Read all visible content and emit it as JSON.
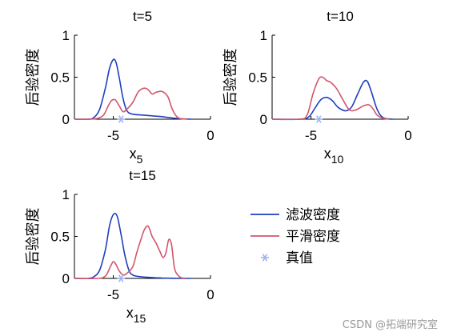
{
  "colors": {
    "filter": "#1f3fbf",
    "smooth": "#d2566b",
    "truth": "#9fb4f2",
    "axis": "#000000"
  },
  "legend": {
    "items": [
      {
        "label": "滤波密度",
        "color": "#1f3fbf",
        "marker": "line"
      },
      {
        "label": "平滑密度",
        "color": "#d2566b",
        "marker": "line"
      },
      {
        "label": "真值",
        "color": "#9fb4f2",
        "marker": "asterisk"
      }
    ]
  },
  "watermark": "CSDN @拓端研究室",
  "chart_data": [
    {
      "type": "line",
      "title": "t=5",
      "xlabel": "x",
      "xlabel_sub": "5",
      "ylabel": "后验密度",
      "xlim": [
        -7,
        0
      ],
      "ylim": [
        0,
        1
      ],
      "xticks": [
        -5,
        0
      ],
      "yticks": [
        0,
        0.5,
        1
      ],
      "series": [
        {
          "name": "滤波密度",
          "x": [
            -7,
            -6.3,
            -6,
            -5.7,
            -5.4,
            -5.2,
            -5.0,
            -4.85,
            -4.7,
            -4.5,
            -4.3,
            -4.0,
            -3.5,
            -3.0,
            -2.5,
            -2.0,
            -1.5,
            -1.0
          ],
          "y": [
            0,
            0,
            0.02,
            0.12,
            0.38,
            0.6,
            0.71,
            0.67,
            0.5,
            0.25,
            0.1,
            0.06,
            0.05,
            0.04,
            0.03,
            0.015,
            0.005,
            0
          ]
        },
        {
          "name": "平滑密度",
          "x": [
            -7,
            -6.2,
            -5.8,
            -5.5,
            -5.3,
            -5.1,
            -4.9,
            -4.7,
            -4.5,
            -4.3,
            -4.0,
            -3.7,
            -3.4,
            -3.2,
            -3.0,
            -2.8,
            -2.5,
            -2.2,
            -2.0,
            -1.8,
            -1.6,
            -1.2
          ],
          "y": [
            0,
            0,
            0.01,
            0.05,
            0.14,
            0.22,
            0.23,
            0.16,
            0.09,
            0.12,
            0.2,
            0.33,
            0.37,
            0.35,
            0.3,
            0.32,
            0.33,
            0.27,
            0.14,
            0.05,
            0.01,
            0
          ]
        }
      ],
      "truth": {
        "x": -4.6,
        "y": 0
      }
    },
    {
      "type": "line",
      "title": "t=10",
      "xlabel": "x",
      "xlabel_sub": "10",
      "ylabel": "后验密度",
      "xlim": [
        -7,
        0
      ],
      "ylim": [
        0,
        1
      ],
      "xticks": [
        -5,
        0
      ],
      "yticks": [
        0,
        0.5,
        1
      ],
      "series": [
        {
          "name": "滤波密度",
          "x": [
            -7,
            -5.5,
            -5.1,
            -4.8,
            -4.5,
            -4.2,
            -3.9,
            -3.6,
            -3.2,
            -2.9,
            -2.6,
            -2.3,
            -2.1,
            -1.9,
            -1.6,
            -1.3,
            -0.8
          ],
          "y": [
            0,
            0,
            0.03,
            0.13,
            0.23,
            0.26,
            0.22,
            0.14,
            0.1,
            0.15,
            0.3,
            0.44,
            0.45,
            0.33,
            0.12,
            0.02,
            0
          ]
        },
        {
          "name": "平滑密度",
          "x": [
            -7,
            -5.6,
            -5.2,
            -4.9,
            -4.6,
            -4.4,
            -4.2,
            -4.0,
            -3.7,
            -3.4,
            -3.1,
            -2.9,
            -2.6,
            -2.3,
            -2.0,
            -1.8,
            -1.6,
            -1.3,
            -1.0
          ],
          "y": [
            0,
            0,
            0.05,
            0.3,
            0.48,
            0.5,
            0.46,
            0.44,
            0.37,
            0.25,
            0.13,
            0.1,
            0.12,
            0.16,
            0.17,
            0.12,
            0.05,
            0.01,
            0
          ]
        }
      ],
      "truth": {
        "x": -4.6,
        "y": 0
      }
    },
    {
      "type": "line",
      "title": "t=15",
      "xlabel": "x",
      "xlabel_sub": "15",
      "ylabel": "后验密度",
      "xlim": [
        -7,
        0
      ],
      "ylim": [
        0,
        1
      ],
      "xticks": [
        -5,
        0
      ],
      "yticks": [
        0,
        0.5,
        1
      ],
      "series": [
        {
          "name": "滤波密度",
          "x": [
            -7,
            -6.3,
            -6.0,
            -5.7,
            -5.4,
            -5.2,
            -5.0,
            -4.8,
            -4.6,
            -4.4,
            -4.2,
            -4.0,
            -3.6,
            -3.0,
            -2.5,
            -2.0,
            -1.5,
            -1.0
          ],
          "y": [
            0,
            0,
            0.02,
            0.1,
            0.35,
            0.62,
            0.76,
            0.74,
            0.52,
            0.27,
            0.1,
            0.04,
            0.02,
            0.01,
            0.005,
            0.002,
            0,
            0
          ]
        },
        {
          "name": "平滑密度",
          "x": [
            -7,
            -5.8,
            -5.4,
            -5.15,
            -5.0,
            -4.85,
            -4.7,
            -4.5,
            -4.3,
            -4.0,
            -3.8,
            -3.6,
            -3.4,
            -3.2,
            -3.0,
            -2.8,
            -2.6,
            -2.45,
            -2.3,
            -2.15,
            -2.0,
            -1.85,
            -1.6,
            -1.3
          ],
          "y": [
            0,
            0,
            0.03,
            0.14,
            0.2,
            0.16,
            0.09,
            0.04,
            0.06,
            0.14,
            0.3,
            0.45,
            0.58,
            0.62,
            0.5,
            0.42,
            0.32,
            0.25,
            0.3,
            0.46,
            0.4,
            0.12,
            0.02,
            0
          ]
        }
      ],
      "truth": {
        "x": -4.6,
        "y": 0
      }
    }
  ]
}
